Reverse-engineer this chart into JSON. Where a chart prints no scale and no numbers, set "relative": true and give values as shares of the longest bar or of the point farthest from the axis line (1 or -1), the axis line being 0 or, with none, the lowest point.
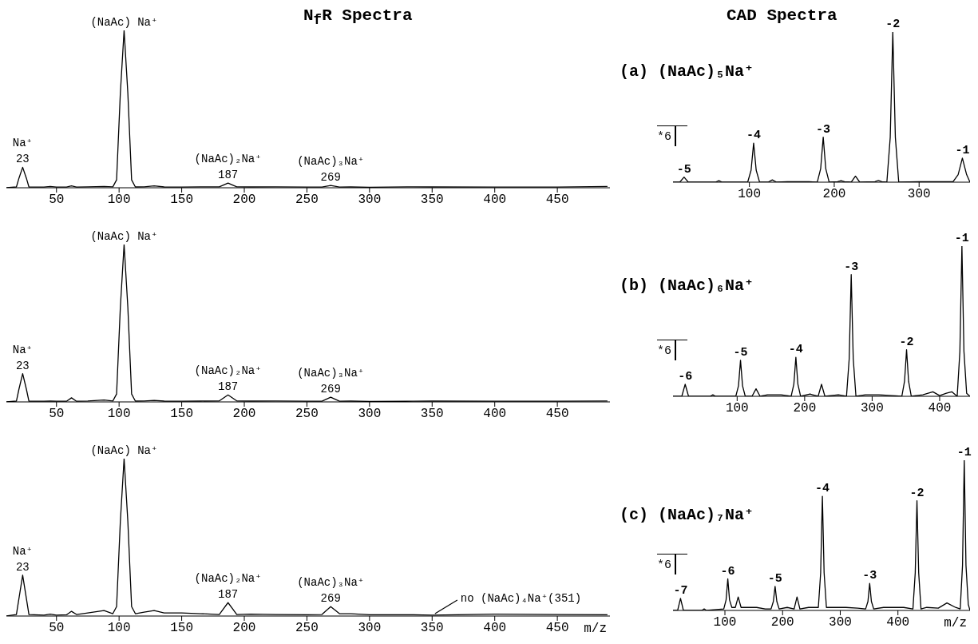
{
  "chart_data": [
    {
      "type": "line",
      "title": "N$_{f}$R Spectra",
      "relative": true,
      "xlim": [
        10,
        492
      ],
      "xticks": [
        50,
        100,
        150,
        200,
        250,
        300,
        350,
        400,
        450
      ],
      "series": [
        {
          "color": "#000000",
          "x": [
            10,
            18,
            20,
            23,
            26,
            28,
            40,
            45,
            50,
            58,
            62,
            66,
            75,
            88,
            95,
            98,
            101,
            104,
            107,
            110,
            113,
            120,
            128,
            136,
            150,
            165,
            180,
            187,
            194,
            205,
            225,
            250,
            262,
            269,
            276,
            285,
            300,
            335,
            350,
            400,
            450,
            490
          ],
          "values": [
            0,
            0.005,
            0.06,
            0.13,
            0.06,
            0.005,
            0.004,
            0.008,
            0.004,
            0.004,
            0.012,
            0.004,
            0.006,
            0.008,
            0.006,
            0.05,
            0.6,
            1,
            0.6,
            0.05,
            0.005,
            0.006,
            0.012,
            0.005,
            0.004,
            0.006,
            0.006,
            0.03,
            0.006,
            0.005,
            0.006,
            0.004,
            0.004,
            0.015,
            0.004,
            0.005,
            0.003,
            0.006,
            0.005,
            0.004,
            0.004,
            0.008
          ]
        }
      ],
      "annotations": [
        {
          "text": "Na⁺",
          "x": 23,
          "y": 0.13
        },
        {
          "text": "23",
          "x": 23,
          "y": 0.13
        },
        {
          "text": "(NaAc) Na⁺",
          "x": 104,
          "y": 1
        },
        {
          "text": "(NaAc)₂Na⁺",
          "x": 187,
          "y": 0.03
        },
        {
          "text": "187",
          "x": 187,
          "y": 0.03
        },
        {
          "text": "(NaAc)₃Na⁺",
          "x": 269,
          "y": 0.015
        },
        {
          "text": "269",
          "x": 269,
          "y": 0.015
        }
      ]
    },
    {
      "type": "line",
      "title": "CAD Spectra",
      "subtitle": "(a) (NaAc)₅Na⁺",
      "relative": true,
      "xlim": [
        10,
        360
      ],
      "xticks": [
        100,
        200,
        300
      ],
      "series": [
        {
          "color": "#000000",
          "x": [
            10,
            18,
            23,
            28,
            40,
            60,
            64,
            68,
            98,
            102,
            105,
            108,
            112,
            122,
            127,
            132,
            145,
            170,
            180,
            184,
            187,
            190,
            194,
            204,
            208,
            212,
            220,
            225,
            230,
            248,
            252,
            256,
            262,
            266,
            269,
            272,
            276,
            300,
            340,
            346,
            351,
            356,
            360
          ],
          "values": [
            0,
            0,
            0.034,
            0,
            0,
            0,
            0.01,
            0,
            0,
            0.08,
            0.26,
            0.08,
            0,
            0,
            0.015,
            0,
            0.003,
            0.003,
            0,
            0.09,
            0.3,
            0.09,
            0,
            0.003,
            0.01,
            0.003,
            0,
            0.04,
            0,
            0.003,
            0.012,
            0.003,
            0,
            0.3,
            1,
            0.3,
            0,
            0.003,
            0.003,
            0.05,
            0.16,
            0.05,
            0
          ]
        }
      ],
      "annotations": [
        "*6",
        {
          "text": "-5",
          "x": 23,
          "y": 0.034
        },
        {
          "text": "-4",
          "x": 105,
          "y": 0.26
        },
        {
          "text": "-3",
          "x": 187,
          "y": 0.3
        },
        {
          "text": "-2",
          "x": 269,
          "y": 1
        },
        {
          "text": "-1",
          "x": 351,
          "y": 0.16
        }
      ]
    },
    {
      "type": "line",
      "relative": true,
      "xlim": [
        10,
        492
      ],
      "xticks": [
        50,
        100,
        150,
        200,
        250,
        300,
        350,
        400,
        450
      ],
      "series": [
        {
          "color": "#000000",
          "x": [
            10,
            18,
            20,
            23,
            26,
            28,
            40,
            45,
            50,
            58,
            62,
            66,
            75,
            88,
            95,
            98,
            101,
            104,
            107,
            110,
            113,
            120,
            128,
            136,
            150,
            165,
            180,
            187,
            194,
            205,
            225,
            250,
            262,
            269,
            276,
            285,
            300,
            335,
            350,
            400,
            450,
            490
          ],
          "values": [
            0,
            0.005,
            0.08,
            0.18,
            0.08,
            0.005,
            0.004,
            0.006,
            0.004,
            0.004,
            0.026,
            0.004,
            0.006,
            0.012,
            0.006,
            0.05,
            0.6,
            1,
            0.6,
            0.05,
            0.005,
            0.006,
            0.01,
            0.005,
            0.004,
            0.005,
            0.006,
            0.044,
            0.006,
            0.005,
            0.006,
            0.004,
            0.004,
            0.03,
            0.004,
            0.005,
            0.003,
            0.004,
            0.005,
            0.004,
            0.004,
            0.006
          ]
        }
      ],
      "annotations": [
        {
          "text": "Na⁺",
          "x": 23,
          "y": 0.18
        },
        {
          "text": "23",
          "x": 23,
          "y": 0.18
        },
        {
          "text": "(NaAc) Na⁺",
          "x": 104,
          "y": 1
        },
        {
          "text": "(NaAc)₂Na⁺",
          "x": 187,
          "y": 0.044
        },
        {
          "text": "187",
          "x": 187,
          "y": 0.044
        },
        {
          "text": "(NaAc)₃Na⁺",
          "x": 269,
          "y": 0.03
        },
        {
          "text": "269",
          "x": 269,
          "y": 0.03
        }
      ]
    },
    {
      "type": "line",
      "subtitle": "(b) (NaAc)₆Na⁺",
      "relative": true,
      "xlim": [
        5,
        445
      ],
      "xticks": [
        100,
        200,
        300,
        400
      ],
      "series": [
        {
          "color": "#000000",
          "x": [
            5,
            18,
            23,
            28,
            40,
            60,
            64,
            68,
            98,
            102,
            105,
            108,
            112,
            122,
            128,
            134,
            145,
            165,
            180,
            184,
            187,
            190,
            194,
            208,
            220,
            225,
            230,
            250,
            262,
            266,
            269,
            272,
            276,
            290,
            310,
            330,
            344,
            348,
            351,
            354,
            358,
            375,
            390,
            400,
            410,
            418,
            426,
            430,
            433,
            436,
            440,
            445
          ],
          "values": [
            0,
            0,
            0.08,
            0,
            0,
            0,
            0.01,
            0,
            0,
            0.07,
            0.24,
            0.07,
            0,
            0,
            0.05,
            0,
            0.01,
            0.01,
            0,
            0.08,
            0.26,
            0.08,
            0,
            0.015,
            0,
            0.08,
            0,
            0.01,
            0,
            0.25,
            0.81,
            0.25,
            0,
            0.01,
            0.01,
            0.005,
            0,
            0.1,
            0.31,
            0.1,
            0,
            0.01,
            0.03,
            0.005,
            0.02,
            0.03,
            0,
            0.3,
            1,
            0.3,
            0.02,
            0
          ]
        }
      ],
      "annotations": [
        "*6",
        {
          "text": "-6",
          "x": 23,
          "y": 0.08
        },
        {
          "text": "-5",
          "x": 105,
          "y": 0.24
        },
        {
          "text": "-4",
          "x": 187,
          "y": 0.26
        },
        {
          "text": "-3",
          "x": 269,
          "y": 0.81
        },
        {
          "text": "-2",
          "x": 351,
          "y": 0.31
        },
        {
          "text": "-1",
          "x": 433,
          "y": 1
        }
      ]
    },
    {
      "type": "line",
      "xlabel": "m/z",
      "relative": true,
      "xlim": [
        10,
        492
      ],
      "xticks": [
        50,
        100,
        150,
        200,
        250,
        300,
        350,
        400,
        450
      ],
      "series": [
        {
          "color": "#000000",
          "x": [
            10,
            18,
            20,
            23,
            26,
            28,
            40,
            45,
            50,
            58,
            62,
            66,
            75,
            88,
            95,
            98,
            101,
            104,
            107,
            110,
            113,
            120,
            128,
            136,
            150,
            165,
            180,
            187,
            194,
            205,
            225,
            250,
            262,
            269,
            276,
            285,
            300,
            335,
            350,
            400,
            450,
            490
          ],
          "values": [
            0,
            0.01,
            0.11,
            0.26,
            0.11,
            0.01,
            0.006,
            0.012,
            0.006,
            0.008,
            0.03,
            0.01,
            0.02,
            0.035,
            0.015,
            0.06,
            0.6,
            1,
            0.6,
            0.06,
            0.015,
            0.025,
            0.035,
            0.02,
            0.02,
            0.015,
            0.01,
            0.085,
            0.01,
            0.012,
            0.01,
            0.008,
            0.01,
            0.06,
            0.015,
            0.015,
            0.008,
            0.008,
            0.006,
            0.012,
            0.01,
            0.008
          ]
        }
      ],
      "annotations": [
        {
          "text": "Na⁺",
          "x": 23,
          "y": 0.26
        },
        {
          "text": "23",
          "x": 23,
          "y": 0.26
        },
        {
          "text": "(NaAc) Na⁺",
          "x": 104,
          "y": 1
        },
        {
          "text": "(NaAc)₂Na⁺",
          "x": 187,
          "y": 0.085
        },
        {
          "text": "187",
          "x": 187,
          "y": 0.085
        },
        {
          "text": "(NaAc)₃Na⁺",
          "x": 269,
          "y": 0.06
        },
        {
          "text": "269",
          "x": 269,
          "y": 0.06
        },
        {
          "text": "no (NaAc)₄Na⁺(351)",
          "x": 351,
          "y": 0
        }
      ]
    },
    {
      "type": "line",
      "subtitle": "(c) (NaAc)₇Na⁺",
      "xlabel": "m/z",
      "relative": true,
      "xlim": [
        10,
        525
      ],
      "xticks": [
        100,
        200,
        300,
        400
      ],
      "series": [
        {
          "color": "#000000",
          "x": [
            10,
            18,
            23,
            28,
            40,
            60,
            64,
            68,
            98,
            102,
            105,
            108,
            112,
            118,
            123,
            128,
            140,
            155,
            170,
            180,
            184,
            187,
            190,
            194,
            208,
            220,
            225,
            230,
            245,
            262,
            266,
            269,
            272,
            276,
            290,
            310,
            330,
            344,
            348,
            351,
            354,
            358,
            375,
            395,
            410,
            426,
            430,
            433,
            436,
            440,
            450,
            470,
            485,
            500,
            508,
            512,
            515,
            518,
            522,
            525
          ],
          "values": [
            0,
            0,
            0.08,
            0,
            0,
            0,
            0.01,
            0,
            0.01,
            0.07,
            0.21,
            0.07,
            0.02,
            0.02,
            0.09,
            0.02,
            0.02,
            0.02,
            0.01,
            0.01,
            0.06,
            0.16,
            0.06,
            0.01,
            0.02,
            0.01,
            0.09,
            0.01,
            0.02,
            0.02,
            0.25,
            0.76,
            0.25,
            0.02,
            0.02,
            0.02,
            0.015,
            0.01,
            0.06,
            0.18,
            0.06,
            0.01,
            0.02,
            0.02,
            0.02,
            0.01,
            0.25,
            0.73,
            0.25,
            0.01,
            0.02,
            0.015,
            0.05,
            0.02,
            0.01,
            0.3,
            1,
            0.3,
            0.04,
            0
          ]
        }
      ],
      "annotations": [
        "*6",
        {
          "text": "-7",
          "x": 23,
          "y": 0.08
        },
        {
          "text": "-6",
          "x": 105,
          "y": 0.21
        },
        {
          "text": "-5",
          "x": 187,
          "y": 0.16
        },
        {
          "text": "-4",
          "x": 269,
          "y": 0.76
        },
        {
          "text": "-3",
          "x": 351,
          "y": 0.18
        },
        {
          "text": "-2",
          "x": 433,
          "y": 0.73
        },
        {
          "text": "-1",
          "x": 515,
          "y": 1
        }
      ]
    }
  ]
}
